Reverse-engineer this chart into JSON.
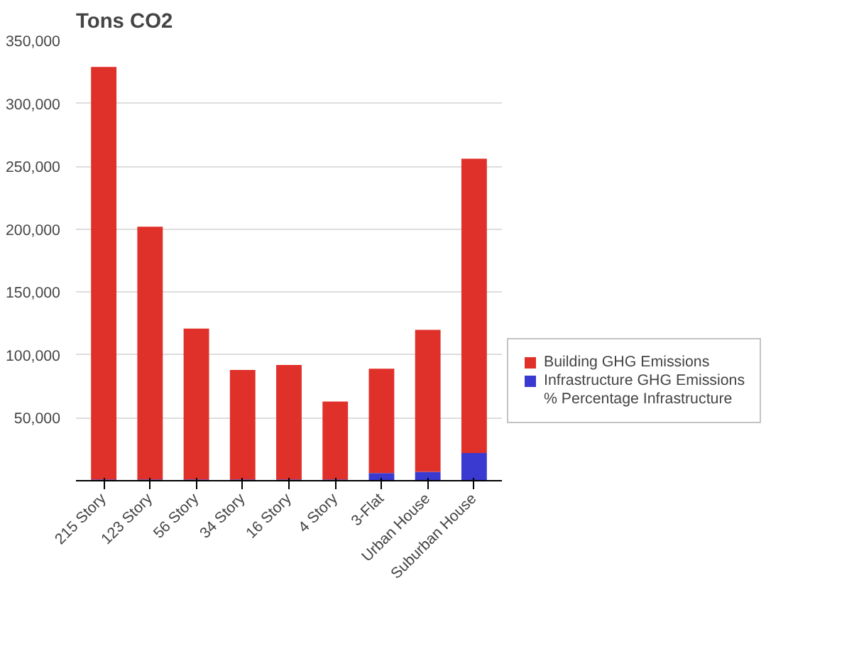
{
  "chart_data": {
    "type": "bar",
    "ylabel": "Tons CO2",
    "stacked": true,
    "categories": [
      "215 Story",
      "123 Story",
      "56 Story",
      "34 Story",
      "16 Story",
      "4 Story",
      "3-Flat",
      "Urban House",
      "Suburban House"
    ],
    "series": [
      {
        "name": "Infrastructure GHG Emissions",
        "color": "#3a3ad0",
        "values": [
          1000,
          1000,
          1000,
          1000,
          1000,
          1000,
          6000,
          7000,
          22000
        ]
      },
      {
        "name": "Building GHG Emissions",
        "color": "#e0302a",
        "values": [
          328000,
          201000,
          120000,
          87000,
          91000,
          62000,
          83000,
          113000,
          234000
        ]
      }
    ],
    "ylim": [
      0,
      350000
    ],
    "yticks": [
      {
        "value": 50000,
        "label": "50,000"
      },
      {
        "value": 100000,
        "label": "100,000"
      },
      {
        "value": 150000,
        "label": "150,000"
      },
      {
        "value": 200000,
        "label": "200,000"
      },
      {
        "value": 250000,
        "label": "250,000"
      },
      {
        "value": 300000,
        "label": "300,000"
      },
      {
        "value": 350000,
        "label": "350,000"
      }
    ],
    "grid": "y",
    "legend": "right",
    "annotations": [
      "% Percentage Infrastructure"
    ]
  }
}
